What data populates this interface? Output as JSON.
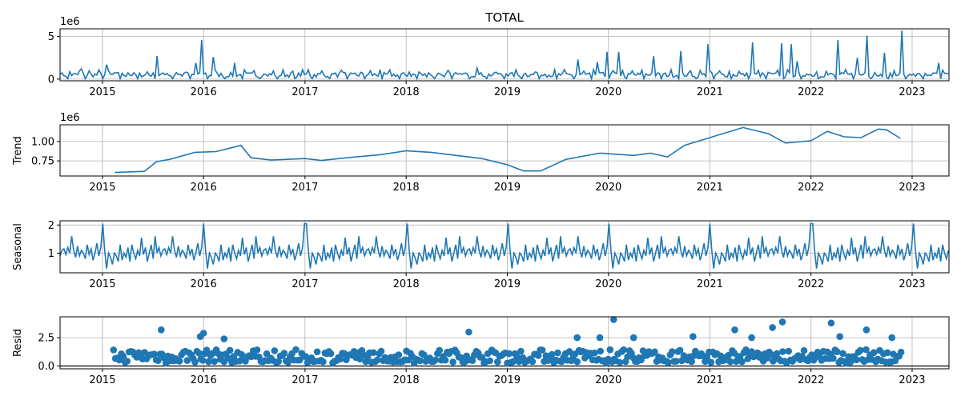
{
  "chart_data": {
    "type": "line",
    "title": "TOTAL",
    "x_range": [
      "2014-08-01",
      "2023-05-14"
    ],
    "x_ticks": [
      "2015",
      "2016",
      "2017",
      "2018",
      "2019",
      "2020",
      "2021",
      "2022",
      "2023"
    ],
    "grid": true,
    "series_color": "#1f77b4",
    "zero_line_color": "#000000",
    "panels": [
      {
        "id": "observed",
        "kind": "line",
        "ylabel": "",
        "offset_label": "1e6",
        "y_ticks": [
          {
            "v": 0,
            "t": "0"
          },
          {
            "v": 5,
            "t": "5"
          }
        ],
        "ylim": [
          -0.2,
          5.9
        ],
        "base": 0.5,
        "spikes": [
          [
            "2014-10-20",
            1.2
          ],
          [
            "2015-01-15",
            1.7
          ],
          [
            "2015-07-20",
            2.7
          ],
          [
            "2015-12-01",
            1.9
          ],
          [
            "2015-12-28",
            4.6
          ],
          [
            "2016-02-05",
            2.6
          ],
          [
            "2016-04-20",
            1.9
          ],
          [
            "2017-01-10",
            1.1
          ],
          [
            "2017-10-01",
            1.1
          ],
          [
            "2018-09-15",
            1.3
          ],
          [
            "2019-09-10",
            2.3
          ],
          [
            "2019-11-20",
            2.0
          ],
          [
            "2019-12-28",
            3.2
          ],
          [
            "2020-02-05",
            3.2
          ],
          [
            "2020-06-10",
            2.7
          ],
          [
            "2020-09-15",
            3.3
          ],
          [
            "2020-12-28",
            4.1
          ],
          [
            "2021-01-15",
            3.3
          ],
          [
            "2021-06-01",
            4.3
          ],
          [
            "2021-09-15",
            4.2
          ],
          [
            "2021-10-20",
            4.1
          ],
          [
            "2021-11-10",
            2.1
          ],
          [
            "2022-04-05",
            4.6
          ],
          [
            "2022-06-15",
            2.5
          ],
          [
            "2022-07-20",
            5.1
          ],
          [
            "2022-09-20",
            3.1
          ],
          [
            "2022-11-25",
            5.7
          ],
          [
            "2023-04-10",
            1.9
          ]
        ]
      },
      {
        "id": "trend",
        "kind": "line",
        "ylabel": "Trend",
        "offset_label": "1e6",
        "y_ticks": [
          {
            "v": 0.75,
            "t": "0.75"
          },
          {
            "v": 1.0,
            "t": "1.00"
          }
        ],
        "ylim": [
          0.555,
          1.215
        ],
        "points": [
          [
            "2015-02-15",
            0.6
          ],
          [
            "2015-06-01",
            0.615
          ],
          [
            "2015-07-15",
            0.74
          ],
          [
            "2015-09-01",
            0.77
          ],
          [
            "2015-12-01",
            0.86
          ],
          [
            "2016-02-15",
            0.87
          ],
          [
            "2016-05-15",
            0.95
          ],
          [
            "2016-06-20",
            0.79
          ],
          [
            "2016-09-01",
            0.76
          ],
          [
            "2017-01-01",
            0.78
          ],
          [
            "2017-03-01",
            0.755
          ],
          [
            "2017-06-01",
            0.79
          ],
          [
            "2017-10-01",
            0.83
          ],
          [
            "2018-01-01",
            0.88
          ],
          [
            "2018-04-01",
            0.86
          ],
          [
            "2018-10-01",
            0.78
          ],
          [
            "2019-01-01",
            0.7
          ],
          [
            "2019-03-01",
            0.62
          ],
          [
            "2019-05-01",
            0.62
          ],
          [
            "2019-08-01",
            0.77
          ],
          [
            "2019-12-01",
            0.85
          ],
          [
            "2020-04-01",
            0.82
          ],
          [
            "2020-06-01",
            0.85
          ],
          [
            "2020-08-01",
            0.8
          ],
          [
            "2020-10-01",
            0.95
          ],
          [
            "2021-01-01",
            1.05
          ],
          [
            "2021-05-01",
            1.18
          ],
          [
            "2021-08-01",
            1.1
          ],
          [
            "2021-10-01",
            0.98
          ],
          [
            "2022-01-01",
            1.01
          ],
          [
            "2022-03-01",
            1.13
          ],
          [
            "2022-05-01",
            1.06
          ],
          [
            "2022-07-01",
            1.05
          ],
          [
            "2022-09-01",
            1.16
          ],
          [
            "2022-10-01",
            1.15
          ],
          [
            "2022-11-20",
            1.04
          ]
        ]
      },
      {
        "id": "seasonal",
        "kind": "line",
        "ylabel": "Seasonal",
        "offset_label": "",
        "y_ticks": [
          {
            "v": 1,
            "t": "1"
          },
          {
            "v": 2,
            "t": "2"
          }
        ],
        "ylim": [
          0.3,
          2.15
        ],
        "pattern": [
          1.15,
          0.95,
          1.2,
          1.0,
          1.6,
          1.1,
          0.85,
          1.25,
          0.9,
          1.1,
          1.0,
          0.8,
          1.3,
          0.95,
          1.15,
          0.75,
          1.0,
          1.35,
          0.9,
          1.2,
          2.05,
          1.1,
          0.45,
          1.0,
          0.85,
          0.6,
          1.0,
          0.9,
          0.7,
          1.3,
          0.75,
          1.0,
          0.85,
          1.2,
          0.7,
          1.3,
          1.0,
          0.8,
          1.1,
          0.9,
          1.55,
          0.95,
          1.2,
          0.7,
          1.0,
          1.3,
          0.8,
          1.6,
          1.0,
          1.2,
          0.9,
          1.1
        ]
      },
      {
        "id": "resid",
        "kind": "scatter",
        "ylabel": "Resid",
        "offset_label": "",
        "y_ticks": [
          {
            "v": 0.0,
            "t": "0.0"
          },
          {
            "v": 2.5,
            "t": "2.5"
          }
        ],
        "ylim": [
          -0.25,
          4.35
        ],
        "zero_line": 0.0,
        "outliers": [
          [
            "2015-08-01",
            3.2
          ],
          [
            "2015-12-20",
            2.6
          ],
          [
            "2016-01-01",
            2.9
          ],
          [
            "2016-03-15",
            2.4
          ],
          [
            "2018-08-15",
            3.0
          ],
          [
            "2019-09-10",
            2.5
          ],
          [
            "2019-12-01",
            2.5
          ],
          [
            "2020-01-20",
            4.1
          ],
          [
            "2020-04-01",
            2.5
          ],
          [
            "2020-11-01",
            2.6
          ],
          [
            "2021-04-01",
            3.2
          ],
          [
            "2021-06-01",
            2.5
          ],
          [
            "2021-08-15",
            3.4
          ],
          [
            "2021-09-20",
            3.9
          ],
          [
            "2022-03-15",
            3.8
          ],
          [
            "2022-04-15",
            2.6
          ],
          [
            "2022-07-20",
            3.2
          ],
          [
            "2022-10-20",
            2.5
          ]
        ]
      }
    ]
  }
}
